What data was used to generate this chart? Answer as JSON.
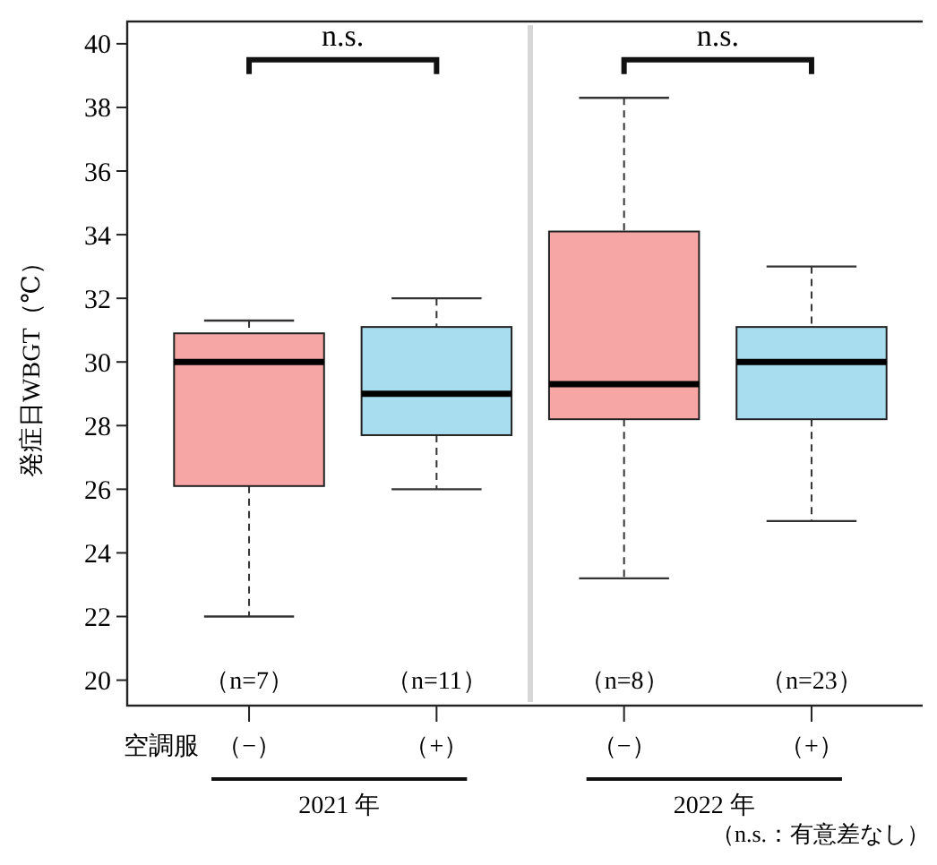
{
  "chart_data": {
    "type": "box",
    "ylabel": "発症日WBGT（℃）",
    "xlabel": "空調服",
    "categories": [
      "（−）",
      "（+）",
      "（−）",
      "（+）"
    ],
    "colors": [
      "#f6a7a5",
      "#a8ddf0",
      "#f6a7a5",
      "#a8ddf0"
    ],
    "boxes": [
      {
        "low": 22,
        "q1": 26.1,
        "median": 30,
        "q3": 30.9,
        "high": 31.3
      },
      {
        "low": 26,
        "q1": 27.7,
        "median": 29,
        "q3": 31.1,
        "high": 32
      },
      {
        "low": 23.2,
        "q1": 28.2,
        "median": 29.3,
        "q3": 34.1,
        "high": 38.3
      },
      {
        "low": 25,
        "q1": 28.2,
        "median": 30,
        "q3": 31.1,
        "high": 33
      }
    ],
    "ylim": [
      19.2,
      40.7
    ],
    "yticks": [
      20,
      22,
      24,
      26,
      28,
      30,
      32,
      34,
      36,
      38,
      40
    ],
    "grid": false,
    "annotations": [
      "n.s.",
      "n.s.",
      "（n=7）",
      "（n=11）",
      "（n=8）",
      "（n=23）",
      "2021 年",
      "2022 年",
      "（n.s.：有意差なし）"
    ]
  }
}
